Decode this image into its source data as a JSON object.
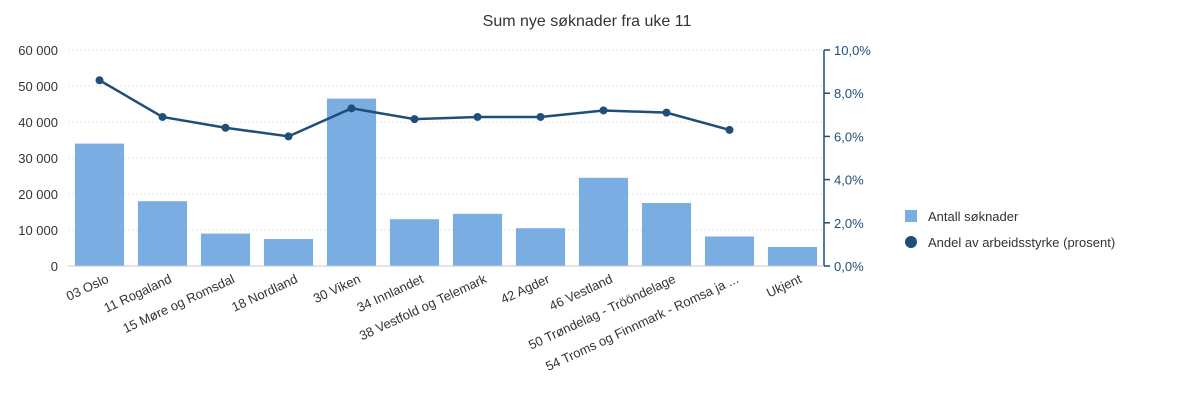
{
  "chart_data": {
    "type": "bar",
    "title": "Sum nye søknader fra uke 11",
    "categories": [
      "03 Oslo",
      "11 Rogaland",
      "15 Møre og Romsdal",
      "18 Nordland",
      "30 Viken",
      "34 Innlandet",
      "38 Vestfold og Telemark",
      "42 Agder",
      "46 Vestland",
      "50 Trøndelag - Trööndelage",
      "54 Troms og Finnmark - Romsa ja ...",
      "Ukjent"
    ],
    "series": [
      {
        "name": "Antall søknader",
        "type": "bar",
        "axis": "left",
        "color": "#7aaee3",
        "values": [
          34000,
          18000,
          9000,
          7500,
          46500,
          13000,
          14500,
          10500,
          24500,
          17500,
          8200,
          5300
        ]
      },
      {
        "name": "Andel av arbeidsstyrke (prosent)",
        "type": "line",
        "axis": "right",
        "color": "#1f4e79",
        "values": [
          8.6,
          6.9,
          6.4,
          6.0,
          7.3,
          6.8,
          6.9,
          6.9,
          7.2,
          7.1,
          6.3,
          null
        ]
      }
    ],
    "y_left": {
      "ylim": [
        0,
        60000
      ],
      "ticks": [
        0,
        10000,
        20000,
        30000,
        40000,
        50000,
        60000
      ],
      "tick_labels": [
        "0",
        "10 000",
        "20 000",
        "30 000",
        "40 000",
        "50 000",
        "60 000"
      ]
    },
    "y_right": {
      "ylim": [
        0,
        10
      ],
      "ticks": [
        0,
        2,
        4,
        6,
        8,
        10
      ],
      "tick_labels": [
        "0,0%",
        "2,0%",
        "4,0%",
        "6,0%",
        "8,0%",
        "10,0%"
      ]
    },
    "grid": true,
    "legend_position": "right"
  }
}
